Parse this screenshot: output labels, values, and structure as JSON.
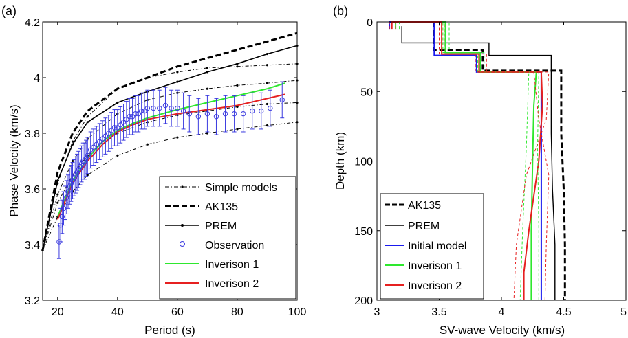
{
  "chart_data": [
    {
      "panel_label": "(a)",
      "type": "line",
      "xlabel": "Period (s)",
      "ylabel": "Phase Velocity (km/s)",
      "xlim": [
        15,
        100
      ],
      "ylim": [
        3.2,
        4.2
      ],
      "xticks": [
        20,
        40,
        60,
        80,
        100
      ],
      "yticks": [
        3.2,
        3.4,
        3.6,
        3.8,
        4.0,
        4.2
      ],
      "ytick_labels": [
        "3.2",
        "3.4",
        "3.6",
        "3.8",
        "4",
        "4.2"
      ],
      "legend_position": "bottom-right",
      "grid": false,
      "legend": [
        {
          "label": "Simple models",
          "style": "thin-dash-dot",
          "color": "#000000"
        },
        {
          "label": "AK135",
          "style": "thick-dashed",
          "color": "#000000"
        },
        {
          "label": "PREM",
          "style": "solid-dot",
          "color": "#000000"
        },
        {
          "label": "Observation",
          "style": "circle",
          "color": "#3a3adf"
        },
        {
          "label": "Inverison 1",
          "style": "solid",
          "color": "#2ee82e"
        },
        {
          "label": "Inverison 2",
          "style": "solid",
          "color": "#e62020"
        }
      ],
      "series": [
        {
          "name": "Simple models",
          "color": "#000000",
          "style": "thin-dash-dot",
          "x": [
            15,
            20,
            25,
            30,
            40,
            50,
            60,
            70,
            80,
            90,
            100
          ],
          "y": [
            3.38,
            3.62,
            3.77,
            3.86,
            3.96,
            4.0,
            4.02,
            4.035,
            4.04,
            4.045,
            4.05
          ]
        },
        {
          "name": "Simple models",
          "color": "#000000",
          "style": "thin-dash-dot",
          "x": [
            15,
            20,
            25,
            30,
            40,
            50,
            60,
            70,
            80,
            90,
            100
          ],
          "y": [
            3.38,
            3.58,
            3.7,
            3.78,
            3.87,
            3.92,
            3.945,
            3.96,
            3.972,
            3.98,
            3.99
          ]
        },
        {
          "name": "Simple models",
          "color": "#000000",
          "style": "thin-dash-dot",
          "x": [
            15,
            20,
            25,
            30,
            40,
            50,
            60,
            70,
            80,
            90,
            100
          ],
          "y": [
            3.38,
            3.55,
            3.65,
            3.72,
            3.8,
            3.84,
            3.865,
            3.88,
            3.895,
            3.905,
            3.91
          ]
        },
        {
          "name": "Simple models",
          "color": "#000000",
          "style": "thin-dash-dot",
          "x": [
            15,
            20,
            25,
            30,
            40,
            50,
            60,
            70,
            80,
            90,
            100
          ],
          "y": [
            3.38,
            3.5,
            3.59,
            3.65,
            3.72,
            3.76,
            3.785,
            3.8,
            3.815,
            3.828,
            3.84
          ]
        },
        {
          "name": "AK135",
          "color": "#000000",
          "style": "thick-dashed",
          "x": [
            15,
            20,
            25,
            30,
            40,
            50,
            60,
            70,
            80,
            90,
            100
          ],
          "y": [
            3.38,
            3.66,
            3.8,
            3.88,
            3.96,
            4.0,
            4.04,
            4.07,
            4.1,
            4.13,
            4.16
          ]
        },
        {
          "name": "PREM",
          "color": "#000000",
          "style": "solid-dot",
          "x": [
            15,
            20,
            25,
            30,
            40,
            50,
            60,
            70,
            80,
            90,
            100
          ],
          "y": [
            3.38,
            3.63,
            3.76,
            3.84,
            3.91,
            3.95,
            3.985,
            4.02,
            4.05,
            4.085,
            4.115
          ]
        },
        {
          "name": "Inverison 1",
          "color": "#2ee82e",
          "style": "solid",
          "x": [
            20,
            25,
            30,
            35,
            40,
            45,
            50,
            60,
            70,
            80,
            90,
            96
          ],
          "y": [
            3.5,
            3.63,
            3.71,
            3.77,
            3.81,
            3.835,
            3.855,
            3.885,
            3.91,
            3.935,
            3.96,
            3.98
          ]
        },
        {
          "name": "Inverison 2",
          "color": "#e62020",
          "style": "solid",
          "x": [
            20,
            25,
            30,
            35,
            40,
            45,
            50,
            60,
            70,
            80,
            90,
            96
          ],
          "y": [
            3.49,
            3.62,
            3.7,
            3.76,
            3.805,
            3.83,
            3.85,
            3.87,
            3.885,
            3.9,
            3.925,
            3.94
          ]
        }
      ],
      "observation": {
        "name": "Observation",
        "color": "#3a3adf",
        "x": [
          20.5,
          21,
          21.5,
          22,
          22.5,
          23,
          23.5,
          24,
          24.5,
          25,
          25.5,
          26,
          26.5,
          27,
          27.5,
          28,
          28.5,
          29,
          29.5,
          30,
          31,
          32,
          33,
          34,
          35,
          36,
          37,
          38,
          39,
          40,
          41,
          42,
          43,
          44,
          45,
          46,
          47,
          48,
          49,
          50,
          52,
          54,
          56,
          58,
          60,
          62,
          64,
          67,
          70,
          73,
          76,
          79,
          82,
          85,
          88,
          91,
          95
        ],
        "y": [
          3.41,
          3.47,
          3.5,
          3.53,
          3.55,
          3.57,
          3.59,
          3.61,
          3.62,
          3.63,
          3.64,
          3.65,
          3.66,
          3.67,
          3.68,
          3.69,
          3.7,
          3.7,
          3.71,
          3.72,
          3.74,
          3.75,
          3.76,
          3.77,
          3.78,
          3.79,
          3.8,
          3.81,
          3.82,
          3.82,
          3.83,
          3.84,
          3.85,
          3.86,
          3.86,
          3.87,
          3.87,
          3.88,
          3.88,
          3.89,
          3.89,
          3.89,
          3.9,
          3.89,
          3.89,
          3.88,
          3.87,
          3.86,
          3.87,
          3.86,
          3.87,
          3.87,
          3.87,
          3.88,
          3.88,
          3.89,
          3.92
        ],
        "err": [
          0.06,
          0.06,
          0.06,
          0.06,
          0.06,
          0.06,
          0.06,
          0.065,
          0.065,
          0.065,
          0.065,
          0.065,
          0.065,
          0.065,
          0.065,
          0.065,
          0.065,
          0.065,
          0.065,
          0.065,
          0.065,
          0.065,
          0.065,
          0.065,
          0.065,
          0.065,
          0.065,
          0.065,
          0.065,
          0.065,
          0.065,
          0.065,
          0.065,
          0.065,
          0.065,
          0.065,
          0.065,
          0.065,
          0.065,
          0.065,
          0.065,
          0.065,
          0.065,
          0.065,
          0.065,
          0.065,
          0.065,
          0.065,
          0.065,
          0.065,
          0.065,
          0.065,
          0.065,
          0.065,
          0.065,
          0.065,
          0.065
        ]
      }
    },
    {
      "panel_label": "(b)",
      "type": "line",
      "xlabel": "SV-wave Velocity (km/s)",
      "ylabel": "Depth (km)",
      "xlim": [
        3,
        5
      ],
      "ylim": [
        200,
        0
      ],
      "xticks": [
        3,
        3.5,
        4,
        4.5,
        5
      ],
      "xtick_labels": [
        "3",
        "3.5",
        "4",
        "4.5",
        "5"
      ],
      "yticks": [
        0,
        50,
        100,
        150,
        200
      ],
      "legend_position": "bottom-left",
      "grid": false,
      "legend": [
        {
          "label": "AK135",
          "style": "thick-dashed",
          "color": "#000000"
        },
        {
          "label": "PREM",
          "style": "solid",
          "color": "#000000"
        },
        {
          "label": "Initial model",
          "style": "solid",
          "color": "#1a1aee"
        },
        {
          "label": "Inverison 1",
          "style": "solid",
          "color": "#2ee82e"
        },
        {
          "label": "Inverison 2",
          "style": "solid",
          "color": "#e62020"
        }
      ],
      "series": [
        {
          "name": "AK135",
          "color": "#000000",
          "style": "thick-dashed",
          "v": [
            3.46,
            3.46,
            3.85,
            3.85,
            4.48,
            4.48,
            4.5,
            4.51,
            4.51
          ],
          "d": [
            0,
            20,
            20,
            35,
            35,
            80,
            120,
            160,
            200
          ]
        },
        {
          "name": "PREM",
          "color": "#000000",
          "style": "solid",
          "v": [
            3.2,
            3.2,
            3.9,
            3.9,
            4.4,
            4.4,
            4.41,
            4.43,
            4.43
          ],
          "d": [
            3,
            15,
            15,
            24,
            24,
            80,
            120,
            160,
            200
          ]
        },
        {
          "name": "Initial model",
          "color": "#1a1aee",
          "style": "solid",
          "v": [
            3.1,
            3.1,
            3.46,
            3.46,
            3.8,
            3.8,
            4.32,
            4.32
          ],
          "d": [
            5,
            0,
            0,
            24,
            24,
            36,
            36,
            200
          ]
        },
        {
          "name": "Inverison 1",
          "color": "#2ee82e",
          "style": "solid",
          "v": [
            3.15,
            3.15,
            3.55,
            3.55,
            3.83,
            3.83,
            4.28,
            4.26,
            4.25,
            4.24,
            4.24
          ],
          "d": [
            5,
            0,
            0,
            22,
            22,
            36,
            36,
            60,
            100,
            150,
            200
          ]
        },
        {
          "name": "Inverison 2",
          "color": "#e62020",
          "style": "solid",
          "v": [
            3.12,
            3.12,
            3.52,
            3.52,
            3.82,
            3.82,
            4.32,
            4.33,
            4.3,
            4.22,
            4.18,
            4.18
          ],
          "d": [
            5,
            0,
            0,
            23,
            23,
            36,
            36,
            60,
            100,
            150,
            180,
            200
          ]
        },
        {
          "name": "Inverison 1",
          "color": "#2ee82e",
          "style": "thin-dashed",
          "v": [
            3.18,
            3.18,
            3.58,
            3.58,
            3.86,
            3.86,
            4.22,
            4.2,
            4.17,
            4.15
          ],
          "d": [
            5,
            0,
            0,
            22,
            22,
            36,
            36,
            90,
            150,
            200
          ]
        },
        {
          "name": "Inverison 1",
          "color": "#2ee82e",
          "style": "thin-dashed",
          "v": [
            3.13,
            3.13,
            3.53,
            3.53,
            3.81,
            3.81,
            4.3,
            4.29,
            4.3,
            4.3
          ],
          "d": [
            5,
            0,
            0,
            22,
            22,
            36,
            36,
            90,
            150,
            200
          ]
        },
        {
          "name": "Inverison 2",
          "color": "#e62020",
          "style": "thin-dashed",
          "v": [
            3.15,
            3.15,
            3.54,
            3.54,
            3.88,
            3.88,
            4.38,
            4.36,
            4.2,
            4.12,
            4.1
          ],
          "d": [
            5,
            0,
            0,
            23,
            23,
            36,
            36,
            70,
            110,
            160,
            200
          ]
        },
        {
          "name": "Inverison 2",
          "color": "#e62020",
          "style": "thin-dashed",
          "v": [
            3.1,
            3.1,
            3.5,
            3.5,
            3.79,
            3.79,
            4.26,
            4.3,
            4.38,
            4.36,
            4.35
          ],
          "d": [
            5,
            0,
            0,
            23,
            23,
            36,
            36,
            70,
            110,
            160,
            200
          ]
        }
      ]
    }
  ]
}
